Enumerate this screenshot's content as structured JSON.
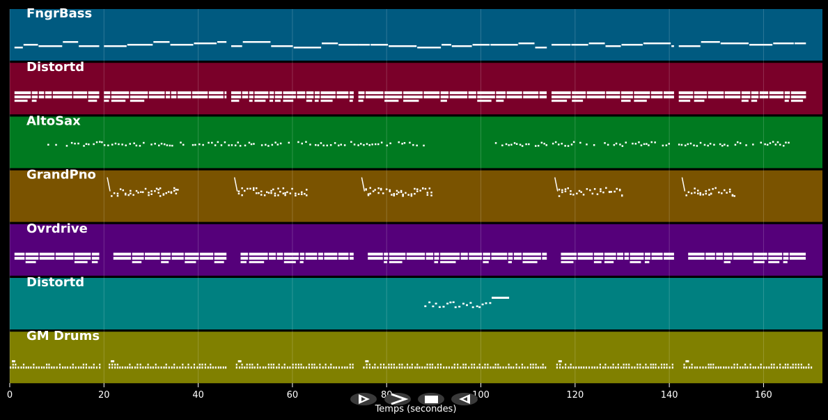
{
  "chart_data": {
    "type": "piano-roll",
    "xlabel": "Temps (secondes)",
    "xlim": [
      0,
      172.5
    ],
    "xticks": [
      0,
      20,
      40,
      60,
      80,
      100,
      120,
      140,
      160
    ],
    "grid": true,
    "tracks": [
      {
        "name": "FngrBass",
        "color": "#005a80",
        "style": "line",
        "segments": [
          [
            1,
            19
          ],
          [
            20,
            46
          ],
          [
            47,
            74
          ],
          [
            74,
            114
          ],
          [
            115,
            141
          ],
          [
            142,
            169
          ]
        ]
      },
      {
        "name": "Distortd",
        "color": "#7a0029",
        "style": "blocks",
        "segments": [
          [
            1,
            19
          ],
          [
            20,
            46
          ],
          [
            47,
            73
          ],
          [
            74,
            114
          ],
          [
            115,
            141
          ],
          [
            142,
            169
          ]
        ]
      },
      {
        "name": "AltoSax",
        "color": "#007a20",
        "style": "dots",
        "segments": [
          [
            8,
            88
          ],
          [
            103,
            166
          ]
        ]
      },
      {
        "name": "GrandPno",
        "color": "#7a5300",
        "style": "arp",
        "segments": [
          [
            21,
            36
          ],
          [
            48,
            63
          ],
          [
            75,
            90
          ],
          [
            116,
            130
          ],
          [
            143,
            154
          ]
        ]
      },
      {
        "name": "Ovrdrive",
        "color": "#55007a",
        "style": "blocks",
        "segments": [
          [
            1,
            19
          ],
          [
            22,
            46
          ],
          [
            49,
            73
          ],
          [
            76,
            114
          ],
          [
            117,
            141
          ],
          [
            144,
            169
          ]
        ]
      },
      {
        "name": "Distortd",
        "color": "#008080",
        "style": "short",
        "segments": [
          [
            88,
            106
          ]
        ]
      },
      {
        "name": "GM Drums",
        "color": "#808000",
        "style": "drums",
        "segments": [
          [
            0,
            19
          ],
          [
            21,
            46
          ],
          [
            48,
            73
          ],
          [
            75,
            114
          ],
          [
            116,
            141
          ],
          [
            143,
            170
          ]
        ]
      }
    ]
  },
  "controls": {
    "buttons": [
      {
        "name": "play-forward-button",
        "icon": "play-outline-icon"
      },
      {
        "name": "fast-forward-button",
        "icon": "chevron-right-icon"
      },
      {
        "name": "stop-button",
        "icon": "stop-icon"
      },
      {
        "name": "rewind-button",
        "icon": "play-reverse-icon"
      }
    ]
  }
}
